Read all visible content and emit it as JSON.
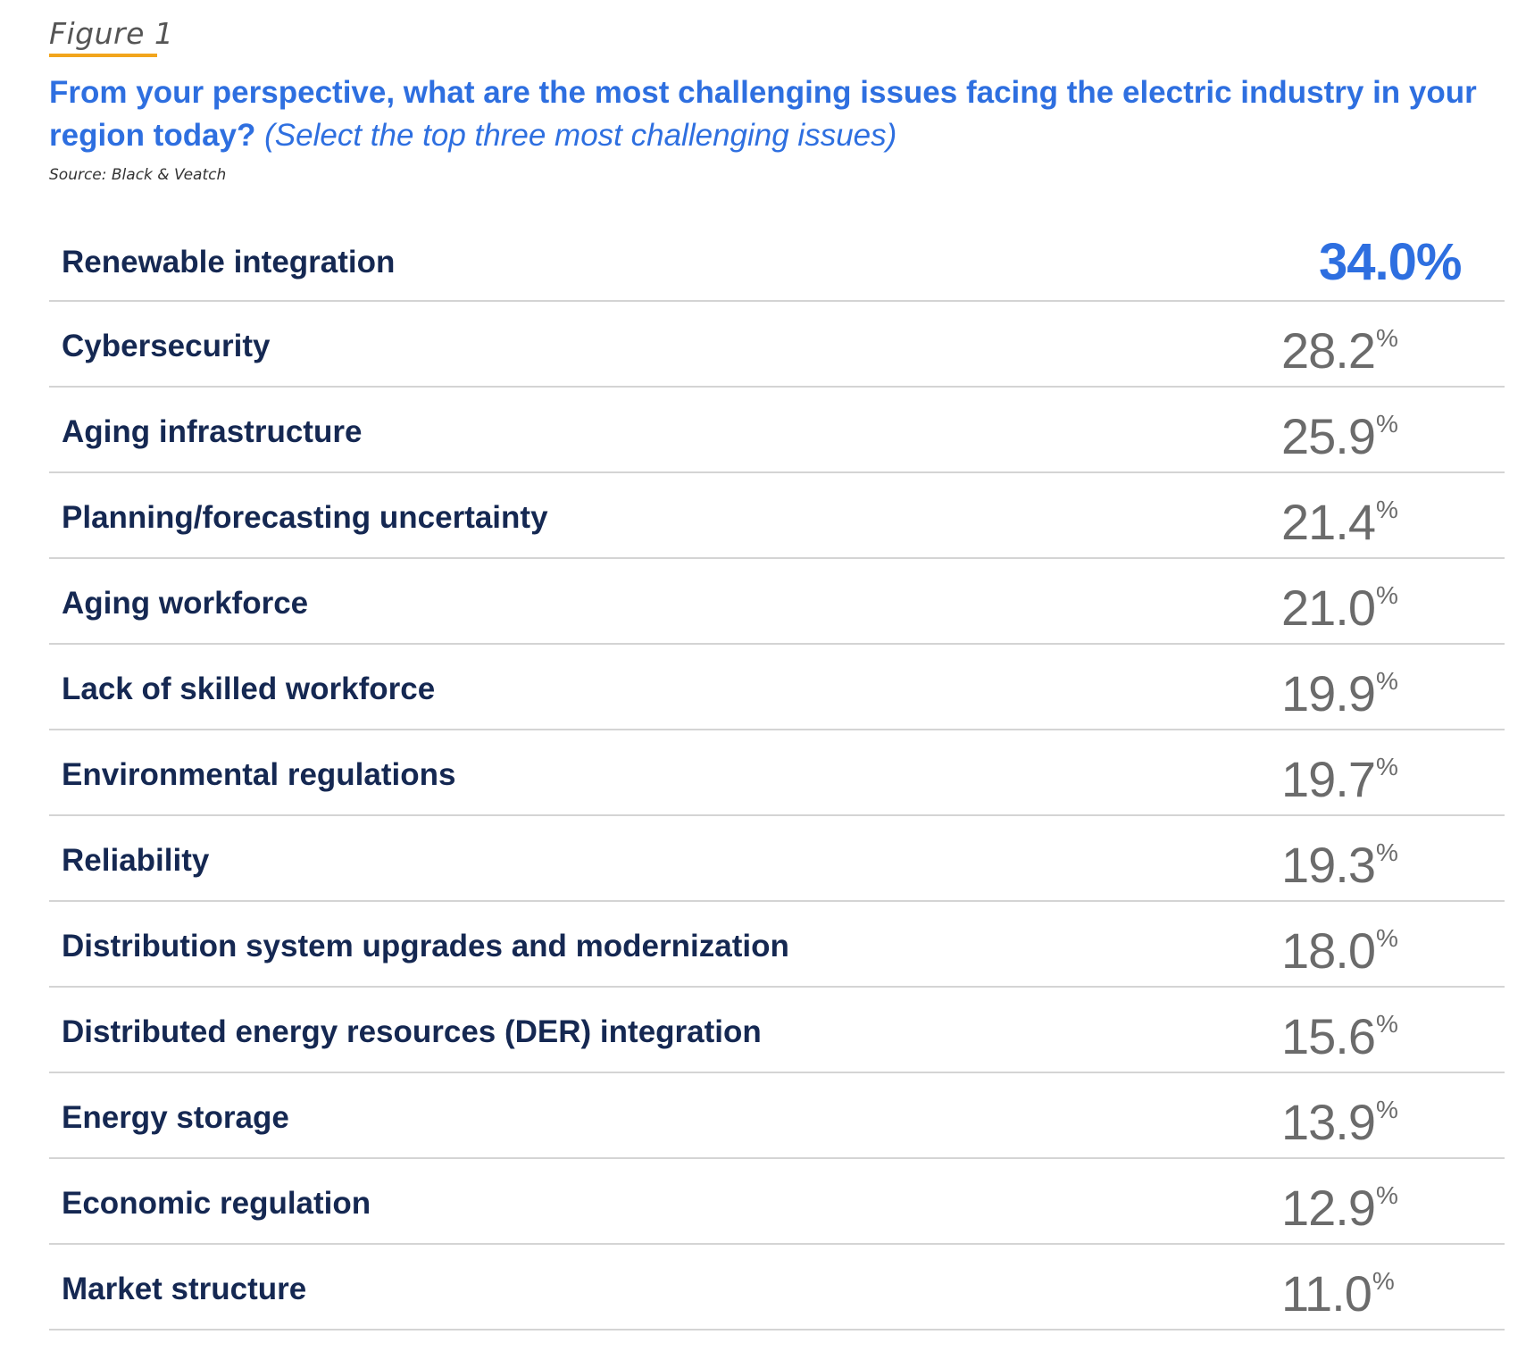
{
  "figure_label": "Figure 1",
  "title_main": "From your perspective, what are the most challenging issues facing the electric industry in your region today?",
  "title_note": "(Select the top three most challenging issues)",
  "source": "Source: Black & Veatch",
  "colors": {
    "accent": "#2e6fe0",
    "label": "#152852",
    "value": "#6b6b6b",
    "underline": "#f2a51c",
    "divider": "#d4d4d4"
  },
  "chart_data": {
    "type": "table",
    "title": "From your perspective, what are the most challenging issues facing the electric industry in your region today? (Select the top three most challenging issues)",
    "rows": [
      {
        "label": "Renewable integration",
        "value": 34.0,
        "display": "34.0%",
        "highlight": true
      },
      {
        "label": "Cybersecurity",
        "value": 28.2,
        "display": "28.2%"
      },
      {
        "label": "Aging infrastructure",
        "value": 25.9,
        "display": "25.9%"
      },
      {
        "label": "Planning/forecasting uncertainty",
        "value": 21.4,
        "display": "21.4%"
      },
      {
        "label": "Aging workforce",
        "value": 21.0,
        "display": "21.0%"
      },
      {
        "label": "Lack of skilled workforce",
        "value": 19.9,
        "display": "19.9%"
      },
      {
        "label": "Environmental regulations",
        "value": 19.7,
        "display": "19.7%"
      },
      {
        "label": "Reliability",
        "value": 19.3,
        "display": "19.3%"
      },
      {
        "label": "Distribution system upgrades and modernization",
        "value": 18.0,
        "display": "18.0%"
      },
      {
        "label": "Distributed energy resources (DER) integration",
        "value": 15.6,
        "display": "15.6%"
      },
      {
        "label": "Energy storage",
        "value": 13.9,
        "display": "13.9%"
      },
      {
        "label": "Economic regulation",
        "value": 12.9,
        "display": "12.9%"
      },
      {
        "label": "Market structure",
        "value": 11.0,
        "display": "11.0%"
      }
    ]
  }
}
